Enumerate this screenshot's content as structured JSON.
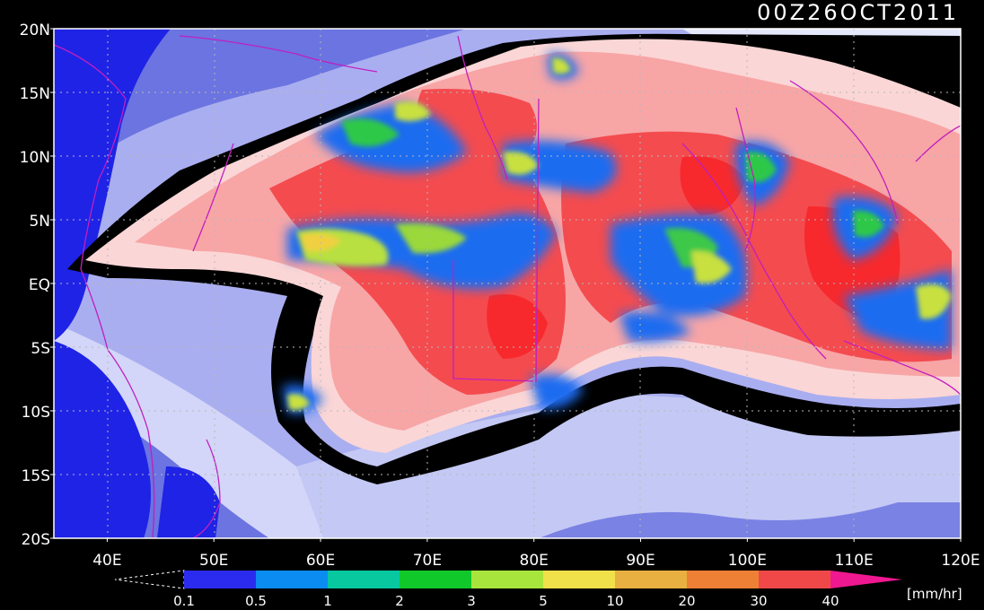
{
  "title": "00Z26OCT2011",
  "map": {
    "lon_range": [
      35,
      120
    ],
    "lat_range": [
      -20,
      20
    ],
    "lon_ticks": [
      "40E",
      "50E",
      "60E",
      "70E",
      "80E",
      "90E",
      "100E",
      "110E",
      "120E"
    ],
    "lat_ticks": [
      "20N",
      "15N",
      "10N",
      "5N",
      "EQ",
      "5S",
      "10S",
      "15S",
      "20S"
    ],
    "grid": "dotted",
    "colors": {
      "deep_blue": "#1f23e6",
      "mid_blue": "#6b74e0",
      "light_blue": "#a9aef0",
      "pale_blue": "#d3d6f8",
      "black_band": "#000000",
      "pale_pink": "#fbd6d6",
      "pink": "#f8a5a6",
      "red": "#f44b4f",
      "bright_red": "#f7292d",
      "coastline": "#c01fc0"
    }
  },
  "colorbar": {
    "unit": "[mm/hr]",
    "labels": [
      "0.1",
      "0.5",
      "1",
      "2",
      "3",
      "5",
      "10",
      "20",
      "30",
      "40"
    ],
    "colors": [
      "#2b2bf0",
      "#0a8cf0",
      "#08c8a0",
      "#11c82b",
      "#a8e53c",
      "#f0e04a",
      "#e8b040",
      "#ee8036",
      "#f04848",
      "#f01890"
    ]
  }
}
